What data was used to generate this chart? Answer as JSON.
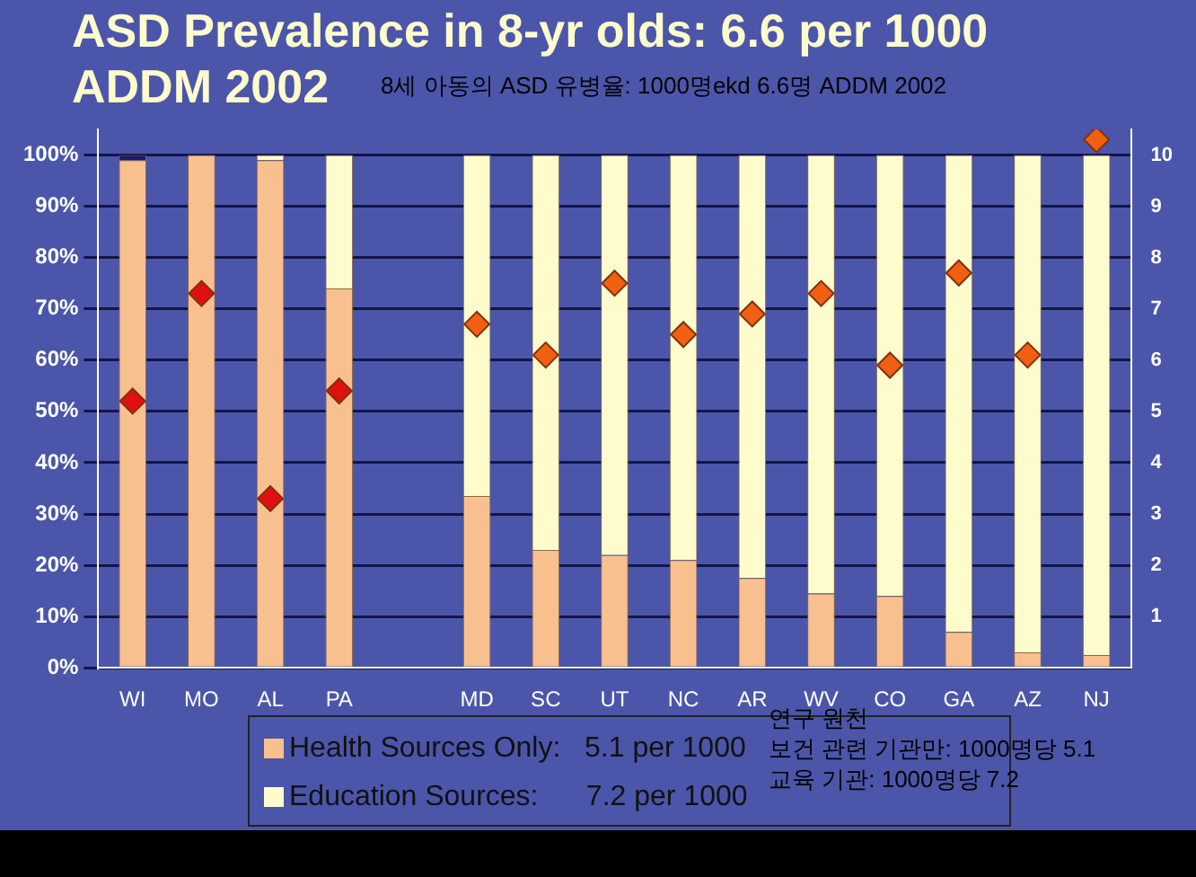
{
  "chart_data": {
    "type": "bar",
    "title": "ASD Prevalence in 8-yr olds: 6.6 per 1000 ADDM 2002",
    "subtitle": "8세 아동의 ASD 유병율: 1000명ekd 6.6명 ADDM 2002",
    "categories": [
      "WI",
      "MO",
      "AL",
      "PA",
      null,
      "MD",
      "SC",
      "UT",
      "NC",
      "AR",
      "WV",
      "CO",
      "GA",
      "AZ",
      "NJ"
    ],
    "stacked": true,
    "series": [
      {
        "name": "Health Sources Only:   5.1 per 1000",
        "color": "#f9c08f",
        "values": [
          99,
          100,
          99,
          74,
          null,
          33.5,
          23,
          22,
          21,
          17.5,
          14.5,
          14,
          7,
          3,
          2.5
        ]
      },
      {
        "name": "Education Sources:      7.2 per 1000",
        "color": "#fefccc",
        "values": [
          0,
          0,
          1,
          26,
          null,
          66.5,
          77,
          78,
          79,
          82.5,
          85.5,
          86,
          93,
          97,
          97.5
        ]
      },
      {
        "color": "#1c1c70",
        "values": [
          1,
          0,
          0,
          0,
          null,
          0,
          0,
          0,
          0,
          0,
          0,
          0,
          0,
          0,
          0
        ]
      },
      {
        "type": "scatter",
        "axis": "y2",
        "marker": "diamond",
        "x": [
          "WI",
          "MO",
          "AL",
          "PA",
          "MD",
          "SC",
          "UT",
          "NC",
          "AR",
          "WV",
          "CO",
          "GA",
          "AZ",
          "NJ"
        ],
        "values": [
          5.2,
          7.3,
          3.3,
          5.4,
          6.7,
          6.1,
          7.5,
          6.5,
          6.9,
          7.3,
          5.9,
          7.7,
          6.1,
          10.3
        ],
        "colors": [
          "#e01010",
          "#e01010",
          "#e01010",
          "#e01010",
          "#f06010",
          "#f06010",
          "#f06010",
          "#f06010",
          "#f06010",
          "#f06010",
          "#f06010",
          "#f06010",
          "#f06010",
          "#f06010"
        ]
      }
    ],
    "ylim": [
      0,
      105
    ],
    "yticks": [
      {
        "value": 0,
        "label": "0%"
      },
      {
        "value": 10,
        "label": "10%"
      },
      {
        "value": 20,
        "label": "20%"
      },
      {
        "value": 30,
        "label": "30%"
      },
      {
        "value": 40,
        "label": "40%"
      },
      {
        "value": 50,
        "label": "50%"
      },
      {
        "value": 60,
        "label": "60%"
      },
      {
        "value": 70,
        "label": "70%"
      },
      {
        "value": 80,
        "label": "80%"
      },
      {
        "value": 90,
        "label": "90%"
      },
      {
        "value": 100,
        "label": "100%"
      }
    ],
    "y2lim": [
      0,
      10.5
    ],
    "y2ticks": [
      1,
      2,
      3,
      4,
      5,
      6,
      7,
      8,
      9,
      10
    ],
    "grid": "y",
    "legend": "bottom",
    "annotations": [
      "연구 원천",
      "보건 관련 기관만: 1000명당 5.1",
      "교육 기관: 1000명당 7.2"
    ]
  }
}
